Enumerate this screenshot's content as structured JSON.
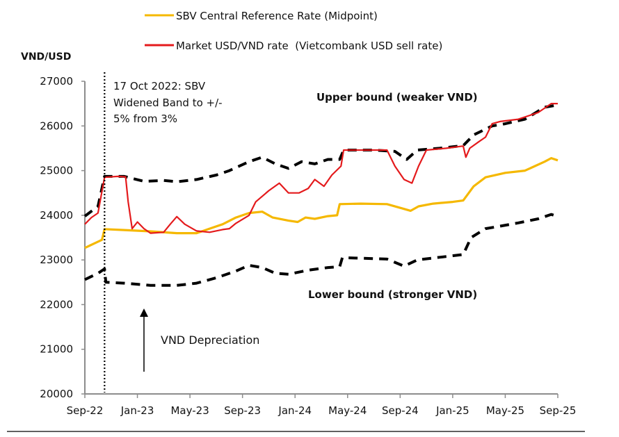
{
  "chart_data": {
    "type": "line",
    "ylabel": "VND/USD",
    "xlabel": "",
    "ylim": [
      20000,
      27000
    ],
    "yticks": [
      "20000",
      "21000",
      "22000",
      "23000",
      "24000",
      "25000",
      "26000",
      "27000"
    ],
    "xticks": [
      "Sep-22",
      "Jan-23",
      "May-23",
      "Sep-23",
      "Jan-24",
      "May-24",
      "Sep-24",
      "Jan-25",
      "May-25",
      "Sep-25"
    ],
    "x_unit": "months since Sep-22",
    "xlim": [
      0,
      36
    ],
    "grid": false,
    "legend": {
      "placement": "top",
      "entries": [
        {
          "label": "SBV Central Reference Rate (Midpoint)",
          "color": "#F5B800"
        },
        {
          "label": "Market USD/VND rate  (Vietcombank USD sell rate)",
          "color": "#E41A1C"
        }
      ]
    },
    "series": [
      {
        "name": "SBV Central Reference Rate (Midpoint)",
        "color": "#F5B800",
        "style": "solid",
        "points": [
          [
            0,
            23270
          ],
          [
            0.8,
            23380
          ],
          [
            1.3,
            23450
          ],
          [
            1.5,
            23690
          ],
          [
            3,
            23670
          ],
          [
            5,
            23640
          ],
          [
            7,
            23600
          ],
          [
            8.5,
            23600
          ],
          [
            9.5,
            23700
          ],
          [
            10.5,
            23800
          ],
          [
            11.5,
            23950
          ],
          [
            12.5,
            24050
          ],
          [
            13.5,
            24080
          ],
          [
            14.3,
            23950
          ],
          [
            15.5,
            23880
          ],
          [
            16.2,
            23850
          ],
          [
            16.8,
            23950
          ],
          [
            17.5,
            23920
          ],
          [
            18.5,
            23980
          ],
          [
            19.2,
            24000
          ],
          [
            19.4,
            24250
          ],
          [
            21,
            24260
          ],
          [
            23,
            24250
          ],
          [
            24.2,
            24150
          ],
          [
            24.8,
            24100
          ],
          [
            25.4,
            24200
          ],
          [
            26.5,
            24260
          ],
          [
            28,
            24300
          ],
          [
            28.8,
            24330
          ],
          [
            29.6,
            24650
          ],
          [
            30.5,
            24850
          ],
          [
            32,
            24950
          ],
          [
            33.5,
            25000
          ],
          [
            35,
            25200
          ],
          [
            35.5,
            25280
          ],
          [
            36,
            25230
          ]
        ]
      },
      {
        "name": "Market USD/VND rate (Vietcombank USD sell rate)",
        "color": "#E41A1C",
        "style": "solid",
        "points": [
          [
            0,
            23800
          ],
          [
            0.5,
            23950
          ],
          [
            1,
            24050
          ],
          [
            1.5,
            24850
          ],
          [
            2.5,
            24870
          ],
          [
            3.1,
            24860
          ],
          [
            3.3,
            24300
          ],
          [
            3.6,
            23700
          ],
          [
            4,
            23850
          ],
          [
            4.5,
            23700
          ],
          [
            5,
            23600
          ],
          [
            6,
            23620
          ],
          [
            6.5,
            23800
          ],
          [
            7,
            23970
          ],
          [
            7.6,
            23800
          ],
          [
            8.5,
            23650
          ],
          [
            9.5,
            23620
          ],
          [
            10.5,
            23680
          ],
          [
            11,
            23700
          ],
          [
            11.5,
            23820
          ],
          [
            12.5,
            24000
          ],
          [
            13,
            24300
          ],
          [
            14,
            24550
          ],
          [
            14.8,
            24720
          ],
          [
            15.5,
            24500
          ],
          [
            16.3,
            24500
          ],
          [
            17,
            24600
          ],
          [
            17.5,
            24800
          ],
          [
            18.2,
            24650
          ],
          [
            18.8,
            24900
          ],
          [
            19.5,
            25100
          ],
          [
            19.7,
            25460
          ],
          [
            22,
            25460
          ],
          [
            23,
            25460
          ],
          [
            23.6,
            25100
          ],
          [
            24.3,
            24800
          ],
          [
            24.9,
            24720
          ],
          [
            25.4,
            25100
          ],
          [
            26,
            25460
          ],
          [
            27.5,
            25500
          ],
          [
            28.8,
            25550
          ],
          [
            29,
            25300
          ],
          [
            29.3,
            25500
          ],
          [
            30,
            25650
          ],
          [
            30.5,
            25750
          ],
          [
            31,
            26050
          ],
          [
            31.6,
            26100
          ],
          [
            33,
            26150
          ],
          [
            34.5,
            26300
          ],
          [
            35.5,
            26500
          ],
          [
            36,
            26500
          ]
        ]
      },
      {
        "name": "Upper bound (weaker VND)",
        "color": "#000000",
        "style": "dashed",
        "points": [
          [
            0,
            23980
          ],
          [
            1,
            24200
          ],
          [
            1.5,
            24870
          ],
          [
            3,
            24870
          ],
          [
            4.5,
            24760
          ],
          [
            6,
            24780
          ],
          [
            7,
            24750
          ],
          [
            8.5,
            24800
          ],
          [
            10,
            24900
          ],
          [
            11,
            25000
          ],
          [
            12.5,
            25200
          ],
          [
            13.5,
            25300
          ],
          [
            14.5,
            25150
          ],
          [
            15.5,
            25050
          ],
          [
            16.5,
            25200
          ],
          [
            17.5,
            25150
          ],
          [
            18.5,
            25250
          ],
          [
            19.4,
            25250
          ],
          [
            19.7,
            25460
          ],
          [
            22,
            25460
          ],
          [
            23.6,
            25430
          ],
          [
            24.5,
            25250
          ],
          [
            25.3,
            25460
          ],
          [
            27,
            25500
          ],
          [
            28.8,
            25560
          ],
          [
            29.6,
            25800
          ],
          [
            31,
            26000
          ],
          [
            32,
            26050
          ],
          [
            33.5,
            26150
          ],
          [
            35,
            26420
          ],
          [
            36,
            26470
          ]
        ]
      },
      {
        "name": "Lower bound (stronger VND)",
        "color": "#000000",
        "style": "dashed",
        "points": [
          [
            0,
            22560
          ],
          [
            1,
            22700
          ],
          [
            1.5,
            22800
          ],
          [
            1.6,
            22500
          ],
          [
            3,
            22480
          ],
          [
            5,
            22430
          ],
          [
            7,
            22430
          ],
          [
            8.5,
            22480
          ],
          [
            10,
            22600
          ],
          [
            11.5,
            22750
          ],
          [
            12.5,
            22880
          ],
          [
            13.5,
            22830
          ],
          [
            14.5,
            22700
          ],
          [
            15.5,
            22680
          ],
          [
            17,
            22770
          ],
          [
            18.5,
            22830
          ],
          [
            19.4,
            22850
          ],
          [
            19.6,
            23050
          ],
          [
            21,
            23040
          ],
          [
            23,
            23020
          ],
          [
            24.3,
            22860
          ],
          [
            25.3,
            23000
          ],
          [
            27,
            23060
          ],
          [
            28.8,
            23120
          ],
          [
            29.4,
            23500
          ],
          [
            30.5,
            23700
          ],
          [
            31.5,
            23750
          ],
          [
            33,
            23830
          ],
          [
            34.5,
            23920
          ],
          [
            35.5,
            24020
          ],
          [
            36,
            23970
          ]
        ]
      }
    ],
    "annotations": [
      {
        "text": [
          "17 Oct 2022: SBV",
          "Widened Band to +/-",
          "5% from 3%"
        ],
        "anchor_x_month": 1.5,
        "type": "vertical-dotted-line"
      },
      {
        "text": "Upper bound (weaker VND)",
        "bold": true
      },
      {
        "text": "Lower bound (stronger VND)",
        "bold": true
      },
      {
        "text": "VND Depreciation",
        "type": "up-arrow"
      }
    ]
  }
}
